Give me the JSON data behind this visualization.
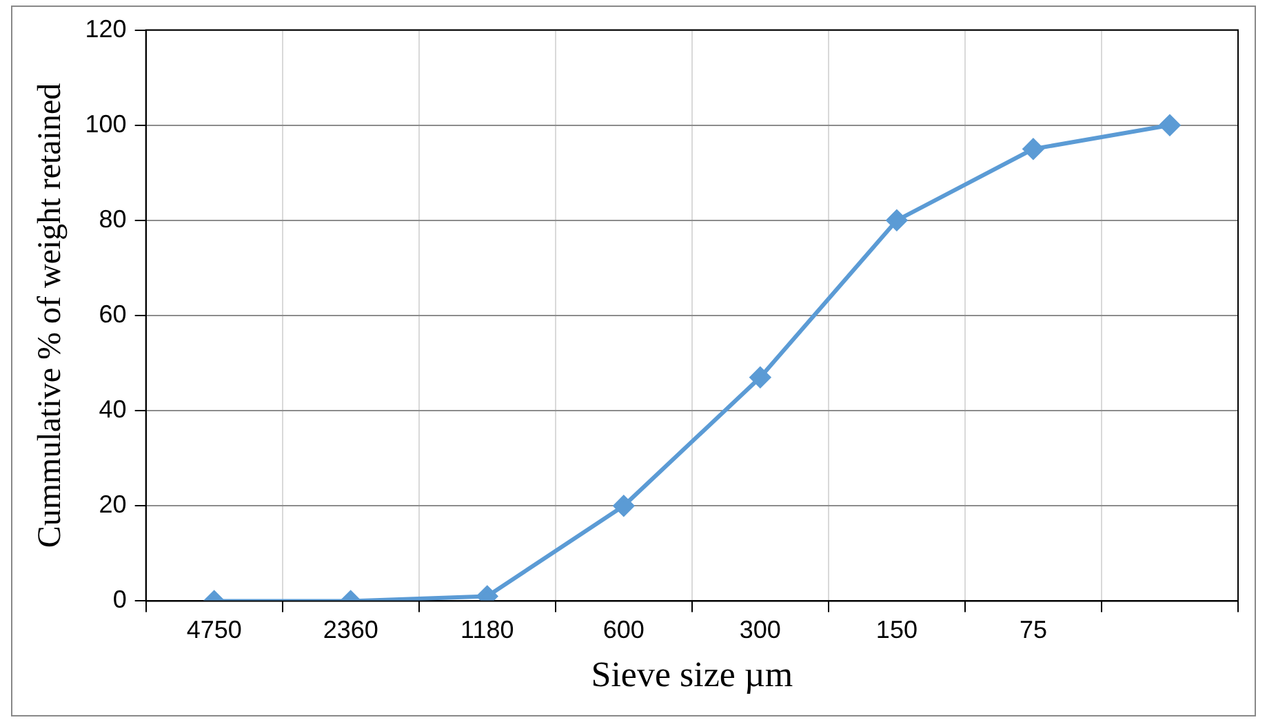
{
  "chart_data": {
    "type": "line",
    "xlabel": "Sieve size µm",
    "ylabel": "Cummulative % of weight retained",
    "categories": [
      "4750",
      "2360",
      "1180",
      "600",
      "300",
      "150",
      "75",
      null
    ],
    "series": [
      {
        "color": "#5b9bd5",
        "values": [
          0,
          0,
          1,
          20,
          47,
          80,
          95,
          100
        ]
      }
    ],
    "ylim": [
      0,
      120
    ],
    "yticks": [
      0,
      20,
      40,
      60,
      80,
      100,
      120
    ],
    "grid": true,
    "marker": "diamond",
    "legend": false
  }
}
